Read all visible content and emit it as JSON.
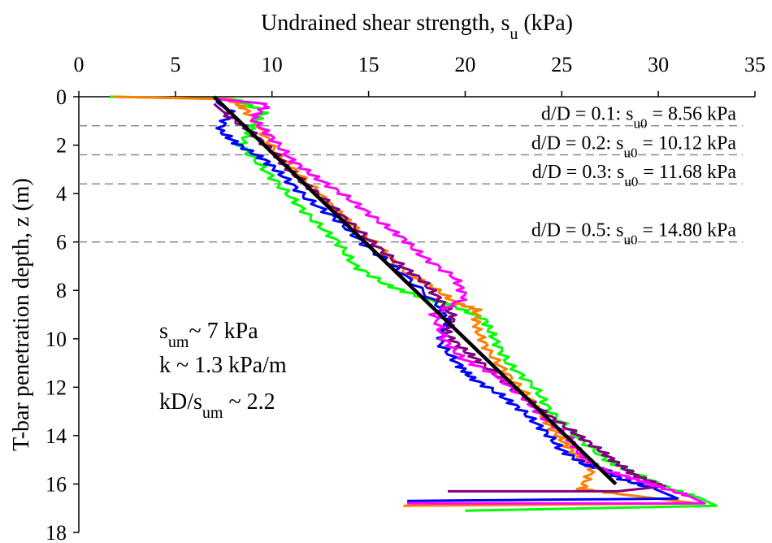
{
  "chart_data": {
    "type": "line",
    "xlabel": "Undrained shear strength, s",
    "xlabel_sub": "u",
    "xlabel_unit": " (kPa)",
    "ylabel": "T-bar penetration depth, z (m)",
    "xlim": [
      0,
      35
    ],
    "ylim": [
      18,
      0
    ],
    "x_ticks": [
      "0",
      "5",
      "10",
      "15",
      "20",
      "25",
      "30",
      "35"
    ],
    "y_ticks": [
      "0",
      "2",
      "4",
      "6",
      "8",
      "10",
      "12",
      "14",
      "16",
      "18"
    ],
    "x_axis_position": "top",
    "grid": false,
    "colors": {
      "green": "#00ff00",
      "orange": "#ff8000",
      "blue": "#0000ff",
      "purple": "#800080",
      "magenta": "#ff00ff",
      "fit": "#000000",
      "dashed": "#808080"
    },
    "dashed_lines": [
      {
        "depth": 1.2,
        "label_a": "d/D = 0.1: s",
        "label_sub": "u0",
        "label_b": " = 8.56 kPa"
      },
      {
        "depth": 2.4,
        "label_a": "d/D = 0.2: s",
        "label_sub": "u0",
        "label_b": " = 10.12 kPa"
      },
      {
        "depth": 3.6,
        "label_a": "d/D = 0.3: s",
        "label_sub": "u0",
        "label_b": " = 11.68 kPa"
      },
      {
        "depth": 6.0,
        "label_a": "d/D = 0.5: s",
        "label_sub": "u0",
        "label_b": " = 14.80 kPa"
      }
    ],
    "fit_line": {
      "x": [
        7.0,
        27.8
      ],
      "y": [
        0.0,
        16.0
      ]
    },
    "annotations": {
      "sum_prefix": "s",
      "sum_sub": "um",
      "sum_rest": "~ 7 kPa",
      "k_text": "k ~ 1.3 kPa/m",
      "kd_prefix": "kD/s",
      "kd_sub": "um",
      "kd_rest": " ~ 2.2"
    },
    "series": [
      {
        "color": "green",
        "x": [
          1.6,
          8.0,
          9.6,
          9.0,
          8.4,
          9.6,
          10.8,
          12.0,
          13.4,
          14.3,
          16.0,
          17.8,
          19.3,
          21.0,
          21.5,
          22.2,
          23.6,
          24.4,
          25.7,
          27.3,
          28.6,
          30.6,
          32.2,
          33.0,
          20.0
        ],
        "y": [
          0.0,
          0.1,
          0.6,
          1.2,
          2.0,
          3.0,
          4.0,
          5.0,
          6.0,
          7.0,
          7.8,
          8.3,
          8.6,
          9.2,
          10.0,
          11.0,
          12.0,
          13.0,
          14.0,
          15.0,
          15.5,
          16.2,
          16.6,
          16.9,
          17.1
        ]
      },
      {
        "color": "orange",
        "x": [
          1.8,
          7.8,
          8.6,
          9.4,
          10.2,
          11.4,
          12.8,
          14.0,
          15.4,
          16.8,
          18.2,
          19.5,
          20.6,
          20.6,
          21.2,
          22.2,
          23.4,
          24.1,
          24.8,
          25.6,
          26.6,
          26.0,
          27.8,
          32.0,
          16.8
        ],
        "y": [
          0.0,
          0.1,
          0.5,
          1.3,
          2.3,
          3.2,
          4.3,
          5.2,
          6.1,
          7.2,
          7.8,
          8.5,
          8.8,
          9.6,
          10.5,
          11.5,
          12.5,
          13.3,
          14.0,
          14.7,
          15.4,
          16.2,
          16.4,
          16.8,
          16.9
        ]
      },
      {
        "color": "blue",
        "x": [
          7.1,
          7.8,
          7.3,
          8.3,
          9.6,
          10.6,
          11.8,
          13.4,
          14.8,
          16.6,
          18.6,
          19.1,
          18.7,
          19.7,
          20.3,
          21.8,
          23.0,
          24.1,
          25.0,
          26.2,
          27.2,
          28.1,
          29.8,
          31.0,
          17.0
        ],
        "y": [
          0.2,
          0.6,
          1.4,
          2.0,
          2.6,
          3.3,
          4.2,
          5.1,
          6.1,
          7.2,
          8.6,
          9.3,
          10.2,
          11.1,
          11.6,
          12.3,
          13.0,
          13.8,
          14.6,
          15.2,
          15.4,
          15.8,
          16.2,
          16.6,
          16.7
        ]
      },
      {
        "color": "purple",
        "x": [
          7.0,
          7.6,
          9.0,
          10.2,
          11.0,
          12.2,
          13.6,
          15.0,
          16.4,
          17.8,
          18.7,
          19.4,
          19.0,
          20.0,
          21.0,
          22.4,
          24.0,
          25.5,
          26.8,
          27.8,
          28.7,
          29.9,
          30.2,
          27.9,
          19.1
        ],
        "y": [
          0.3,
          0.7,
          1.5,
          2.4,
          3.1,
          3.9,
          4.9,
          5.9,
          6.8,
          7.6,
          8.4,
          9.1,
          9.8,
          10.5,
          11.1,
          12.0,
          13.0,
          13.8,
          14.5,
          15.1,
          15.6,
          16.0,
          16.1,
          16.3,
          16.3
        ]
      },
      {
        "color": "magenta",
        "x": [
          7.2,
          9.8,
          9.0,
          10.0,
          11.0,
          12.2,
          13.8,
          15.3,
          16.7,
          17.8,
          19.5,
          20.0,
          18.4,
          18.9,
          19.8,
          21.6,
          23.0,
          24.0,
          25.4,
          26.0,
          27.1,
          28.8,
          30.0,
          31.6,
          32.4,
          17.0
        ],
        "y": [
          0.1,
          0.3,
          0.9,
          1.7,
          2.6,
          3.3,
          4.1,
          5.0,
          5.8,
          6.6,
          7.5,
          8.3,
          9.0,
          10.0,
          10.8,
          11.5,
          12.4,
          13.2,
          14.1,
          14.8,
          15.4,
          15.8,
          16.1,
          16.5,
          16.8,
          16.8
        ]
      }
    ]
  }
}
